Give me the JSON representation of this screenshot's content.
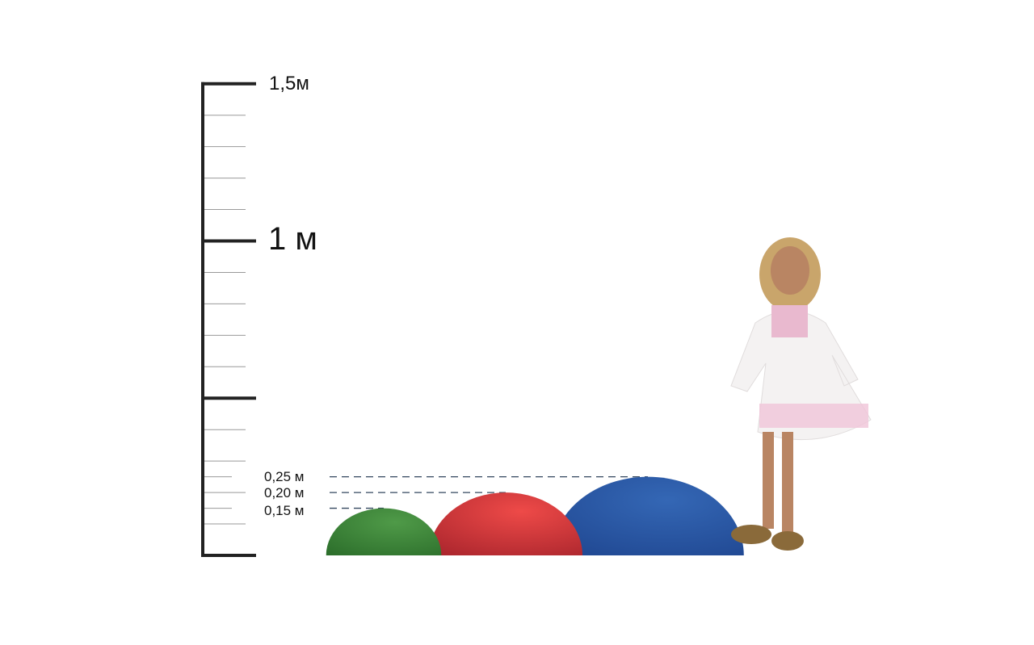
{
  "scale": {
    "label_top": "1,5м",
    "label_mid": "1 м",
    "unit": "m",
    "max": 1.5,
    "step_minor": 0.1
  },
  "heights": [
    {
      "label": "0,25 м",
      "value": 0.25,
      "color": "#2a56a8"
    },
    {
      "label": "0,20 м",
      "value": 0.2,
      "color": "#d63a3e"
    },
    {
      "label": "0,15 м",
      "value": 0.15,
      "color": "#3d8a3a"
    }
  ],
  "figure": "child-standing-photo"
}
